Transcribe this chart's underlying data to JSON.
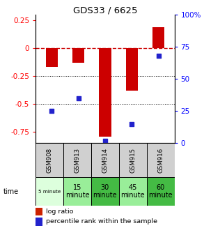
{
  "title": "GDS33 / 6625",
  "samples": [
    "GSM908",
    "GSM913",
    "GSM914",
    "GSM915",
    "GSM916"
  ],
  "times_top": [
    "5 minute",
    "15",
    "30",
    "45",
    "60"
  ],
  "times_bot": [
    "",
    "minute",
    "minute",
    "minute",
    "minute"
  ],
  "log_ratio": [
    -0.17,
    -0.13,
    -0.79,
    -0.38,
    0.19
  ],
  "percentile_rank": [
    25,
    35,
    2,
    15,
    68
  ],
  "ylim_left": [
    -0.85,
    0.3
  ],
  "ylim_right": [
    0,
    100
  ],
  "left_ticks": [
    0.25,
    0.0,
    -0.25,
    -0.5,
    -0.75
  ],
  "right_ticks": [
    100,
    75,
    50,
    25,
    0
  ],
  "bar_color": "#cc0000",
  "dot_color": "#2222cc",
  "hline_color": "#cc0000",
  "gsm_bg": "#d0d0d0",
  "time_colors": [
    "#ddffdd",
    "#99ee99",
    "#44bb44",
    "#99ee99",
    "#44bb44"
  ],
  "legend_bar_color": "#cc2200",
  "legend_dot_color": "#2222cc",
  "bar_width": 0.45
}
